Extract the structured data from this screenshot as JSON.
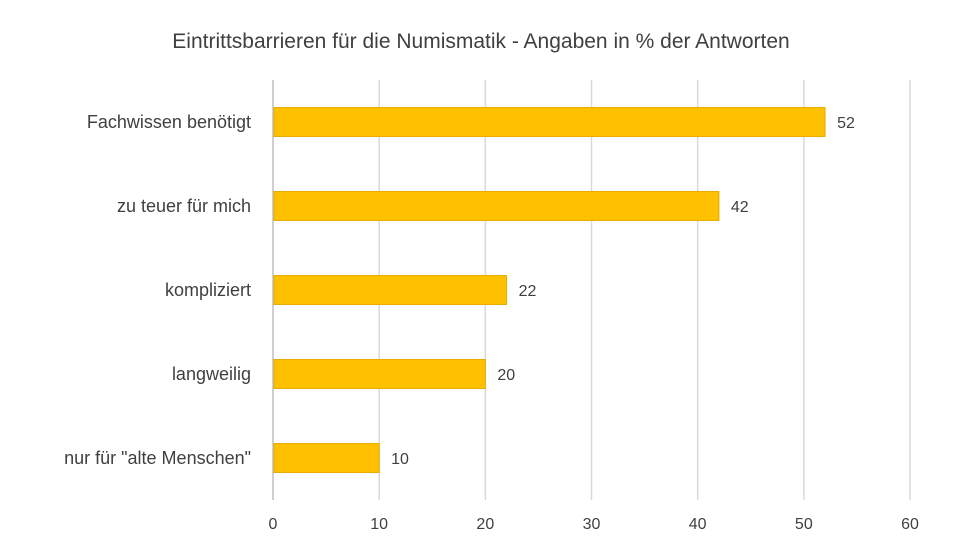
{
  "chart_data": {
    "type": "bar",
    "orientation": "horizontal",
    "title": "Eintrittsbarrieren für die Numismatik - Angaben in % der Antworten",
    "categories": [
      "Fachwissen benötigt",
      "zu teuer für mich",
      "kompliziert",
      "langweilig",
      "nur für \"alte Menschen\""
    ],
    "values": [
      52,
      42,
      22,
      20,
      10
    ],
    "xlim": [
      0,
      60
    ],
    "xticks": [
      "0",
      "10",
      "20",
      "30",
      "40",
      "50",
      "60"
    ],
    "grid": true,
    "legend": "none",
    "bar_color": "#FFC000",
    "bar_stroke": "#E6AC00"
  }
}
